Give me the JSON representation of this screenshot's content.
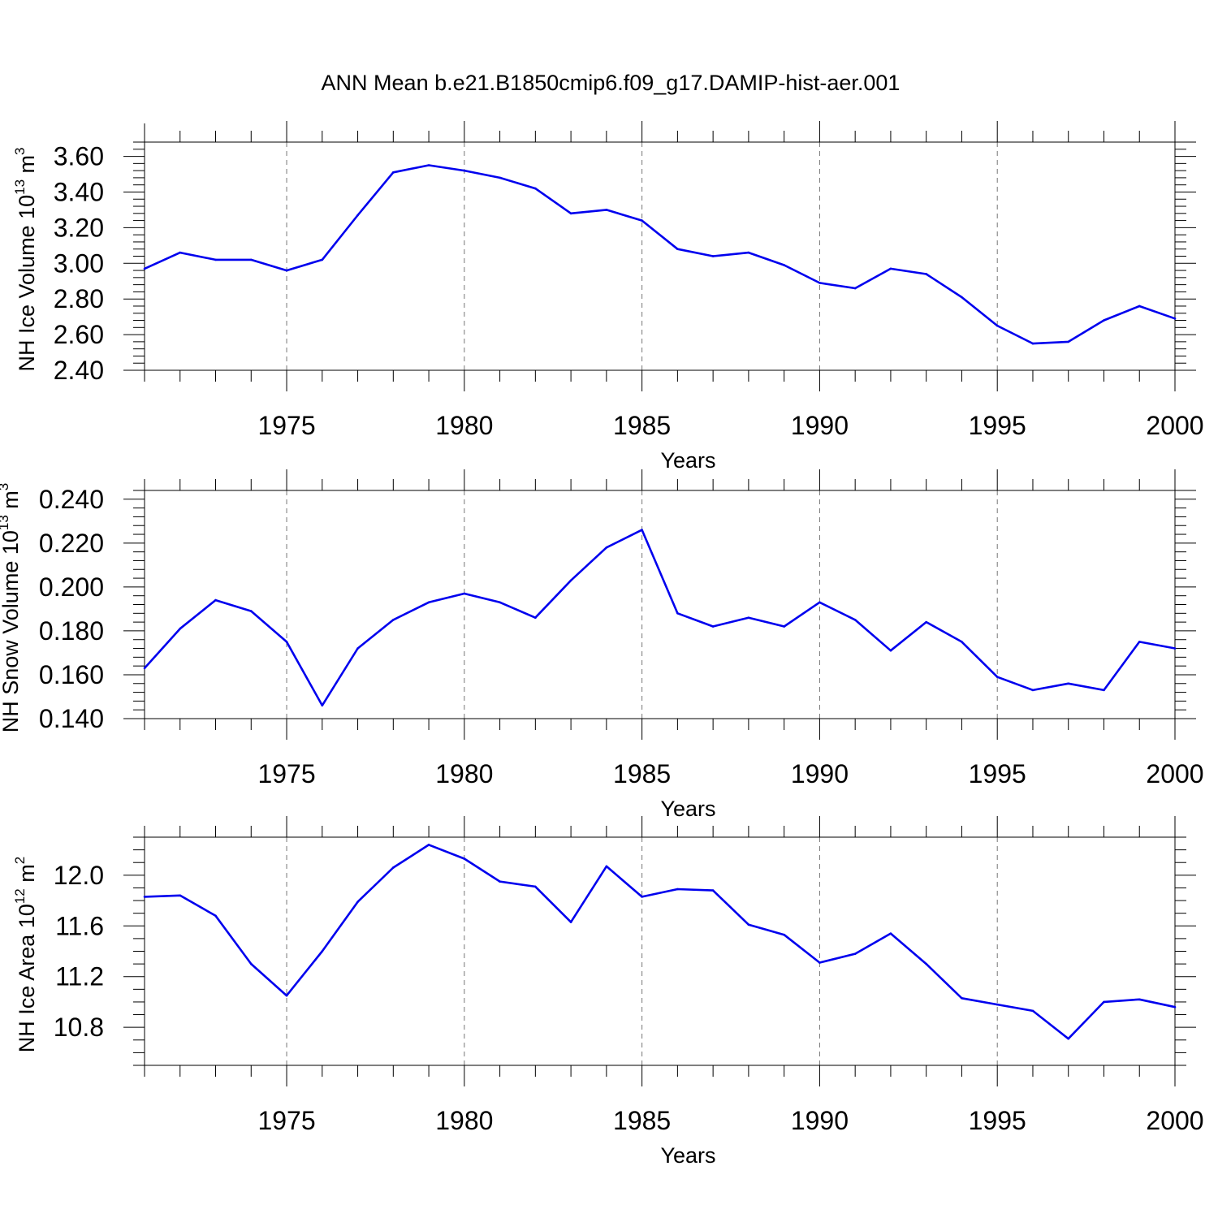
{
  "title": "ANN Mean b.e21.B1850cmip6.f09_g17.DAMIP-hist-aer.001",
  "chart_data": [
    {
      "type": "line",
      "ylabel": "NH Ice Volume 10",
      "ylabel_exp": "13",
      "ylabel_unit": " m",
      "ylabel_unit_exp": "3",
      "xlabel": "Years",
      "xlim": [
        1971,
        2000
      ],
      "ylim": [
        2.4,
        3.68
      ],
      "ymajor": [
        2.4,
        2.6,
        2.8,
        3.0,
        3.2,
        3.4,
        3.6
      ],
      "ymajor_labels": [
        "2.40",
        "2.60",
        "2.80",
        "3.00",
        "3.20",
        "3.40",
        "3.60"
      ],
      "yminor_step": 0.04,
      "xmajor": [
        1975,
        1980,
        1985,
        1990,
        1995,
        2000
      ],
      "xmajor_labels": [
        "1975",
        "1980",
        "1985",
        "1990",
        "1995",
        "2000"
      ],
      "grid": "dashed vertical at major x ticks",
      "line_color": "#0000ee",
      "x": [
        1971,
        1972,
        1973,
        1974,
        1975,
        1976,
        1977,
        1978,
        1979,
        1980,
        1981,
        1982,
        1983,
        1984,
        1985,
        1986,
        1987,
        1988,
        1989,
        1990,
        1991,
        1992,
        1993,
        1994,
        1995,
        1996,
        1997,
        1998,
        1999,
        2000
      ],
      "y": [
        2.97,
        3.06,
        3.02,
        3.02,
        2.96,
        3.02,
        3.27,
        3.51,
        3.55,
        3.52,
        3.48,
        3.42,
        3.28,
        3.3,
        3.24,
        3.08,
        3.04,
        3.06,
        2.99,
        2.89,
        2.86,
        2.97,
        2.94,
        2.81,
        2.65,
        2.55,
        2.56,
        2.68,
        2.76,
        2.69
      ]
    },
    {
      "type": "line",
      "ylabel": "NH Snow Volume 10",
      "ylabel_exp": "13",
      "ylabel_unit": " m",
      "ylabel_unit_exp": "3",
      "xlabel": "Years",
      "xlim": [
        1971,
        2000
      ],
      "ylim": [
        0.14,
        0.244
      ],
      "ymajor": [
        0.14,
        0.16,
        0.18,
        0.2,
        0.22,
        0.24
      ],
      "ymajor_labels": [
        "0.140",
        "0.160",
        "0.180",
        "0.200",
        "0.220",
        "0.240"
      ],
      "yminor_step": 0.004,
      "xmajor": [
        1975,
        1980,
        1985,
        1990,
        1995,
        2000
      ],
      "xmajor_labels": [
        "1975",
        "1980",
        "1985",
        "1990",
        "1995",
        "2000"
      ],
      "grid": "dashed vertical at major x ticks",
      "line_color": "#0000ee",
      "x": [
        1971,
        1972,
        1973,
        1974,
        1975,
        1976,
        1977,
        1978,
        1979,
        1980,
        1981,
        1982,
        1983,
        1984,
        1985,
        1986,
        1987,
        1988,
        1989,
        1990,
        1991,
        1992,
        1993,
        1994,
        1995,
        1996,
        1997,
        1998,
        1999,
        2000
      ],
      "y": [
        0.163,
        0.181,
        0.194,
        0.189,
        0.175,
        0.146,
        0.172,
        0.185,
        0.193,
        0.197,
        0.193,
        0.186,
        0.203,
        0.218,
        0.226,
        0.188,
        0.182,
        0.186,
        0.182,
        0.193,
        0.185,
        0.171,
        0.184,
        0.175,
        0.159,
        0.153,
        0.156,
        0.153,
        0.175,
        0.172
      ]
    },
    {
      "type": "line",
      "ylabel": "NH Ice Area 10",
      "ylabel_exp": "12",
      "ylabel_unit": " m",
      "ylabel_unit_exp": "2",
      "xlabel": "Years",
      "xlim": [
        1971,
        2000
      ],
      "ylim": [
        10.5,
        12.3
      ],
      "ymajor": [
        10.8,
        11.2,
        11.6,
        12.0
      ],
      "ymajor_labels": [
        "10.8",
        "11.2",
        "11.6",
        "12.0"
      ],
      "yminor_step": 0.1,
      "xmajor": [
        1975,
        1980,
        1985,
        1990,
        1995,
        2000
      ],
      "xmajor_labels": [
        "1975",
        "1980",
        "1985",
        "1990",
        "1995",
        "2000"
      ],
      "grid": "dashed vertical at major x ticks",
      "line_color": "#0000ee",
      "x": [
        1971,
        1972,
        1973,
        1974,
        1975,
        1976,
        1977,
        1978,
        1979,
        1980,
        1981,
        1982,
        1983,
        1984,
        1985,
        1986,
        1987,
        1988,
        1989,
        1990,
        1991,
        1992,
        1993,
        1994,
        1995,
        1996,
        1997,
        1998,
        1999,
        2000
      ],
      "y": [
        11.83,
        11.84,
        11.68,
        11.3,
        11.05,
        11.4,
        11.79,
        12.06,
        12.24,
        12.13,
        11.95,
        11.91,
        11.63,
        12.07,
        11.83,
        11.89,
        11.88,
        11.61,
        11.53,
        11.31,
        11.38,
        11.54,
        11.3,
        11.03,
        10.98,
        10.93,
        10.71,
        11.0,
        11.02,
        10.96
      ]
    }
  ]
}
